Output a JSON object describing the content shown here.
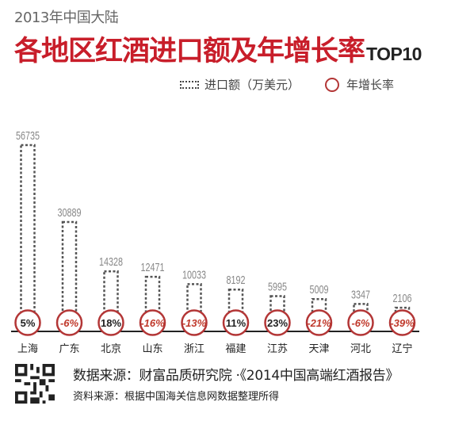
{
  "header": {
    "subtitle": "2013年中国大陆",
    "title_main": "各地区红酒进口额及年增长率",
    "title_suffix": "TOP10"
  },
  "legend": {
    "bar_label": "进口额（万美元）",
    "circle_label": "年增长率"
  },
  "chart_data": {
    "type": "bar",
    "title": "各地区红酒进口额及年增长率TOP10",
    "subtitle": "2013年中国大陆",
    "categories": [
      "上海",
      "广东",
      "北京",
      "山东",
      "浙江",
      "福建",
      "江苏",
      "天津",
      "河北",
      "辽宁"
    ],
    "series": [
      {
        "name": "进口额（万美元）",
        "values": [
          56735,
          30889,
          14328,
          12471,
          10033,
          8192,
          5995,
          5009,
          3347,
          2106
        ],
        "labels": [
          "56735",
          "30889",
          "14328",
          "12471",
          "10033",
          "8192",
          "5995",
          "5009",
          "3347",
          "2106"
        ]
      },
      {
        "name": "年增长率",
        "values": [
          5,
          -6,
          18,
          -16,
          -13,
          11,
          23,
          -21,
          -6,
          -39
        ],
        "labels": [
          "5%",
          "-6%",
          "18%",
          "-16%",
          "-13%",
          "11%",
          "23%",
          "-21%",
          "-6%",
          "-39%"
        ]
      }
    ],
    "colors": {
      "bar_outline": "#555555",
      "circle_outline": "#b33636",
      "negative_text": "#c0392b",
      "positive_text": "#222222",
      "baseline": "#222222",
      "value_label": "#888888"
    },
    "grid": false,
    "legend_position": "top-right"
  },
  "footer": {
    "source": "数据来源：财富品质研究院 ·《2014中国高端红酒报告》",
    "note": "资料来源：根据中国海关信息网数据整理所得"
  }
}
